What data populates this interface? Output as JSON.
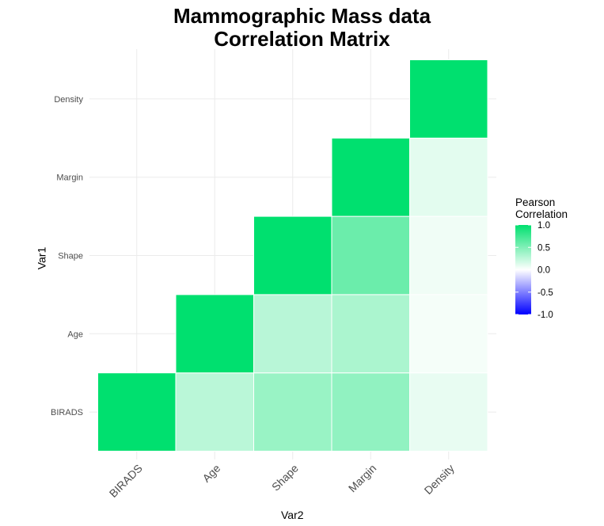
{
  "chart_data": {
    "type": "heatmap",
    "title": [
      "Mammographic Mass data",
      "Correlation Matrix"
    ],
    "xlabel": "Var2",
    "ylabel": "Var1",
    "x_categories": [
      "BIRADS",
      "Age",
      "Shape",
      "Margin",
      "Density"
    ],
    "y_categories": [
      "BIRADS",
      "Age",
      "Shape",
      "Margin",
      "Density"
    ],
    "cells": [
      {
        "x": "BIRADS",
        "y": "BIRADS",
        "value": 1.0
      },
      {
        "x": "Age",
        "y": "BIRADS",
        "value": 0.27
      },
      {
        "x": "Shape",
        "y": "BIRADS",
        "value": 0.4
      },
      {
        "x": "Margin",
        "y": "BIRADS",
        "value": 0.43
      },
      {
        "x": "Density",
        "y": "BIRADS",
        "value": 0.09
      },
      {
        "x": "Age",
        "y": "Age",
        "value": 1.0
      },
      {
        "x": "Shape",
        "y": "Age",
        "value": 0.28
      },
      {
        "x": "Margin",
        "y": "Age",
        "value": 0.33
      },
      {
        "x": "Density",
        "y": "Age",
        "value": 0.04
      },
      {
        "x": "Shape",
        "y": "Shape",
        "value": 1.0
      },
      {
        "x": "Margin",
        "y": "Shape",
        "value": 0.58
      },
      {
        "x": "Density",
        "y": "Shape",
        "value": 0.06
      },
      {
        "x": "Margin",
        "y": "Margin",
        "value": 1.0
      },
      {
        "x": "Density",
        "y": "Margin",
        "value": 0.11
      },
      {
        "x": "Density",
        "y": "Density",
        "value": 1.0
      }
    ],
    "legend": {
      "title": [
        "Pearson",
        "Correlation"
      ],
      "ticks": [
        "1.0",
        "0.5",
        "0.0",
        "-0.5",
        "-1.0"
      ],
      "tick_values": [
        1.0,
        0.5,
        0.0,
        -0.5,
        -1.0
      ],
      "range": [
        -1,
        1
      ],
      "colors": {
        "low": "#0000ff",
        "mid": "#ffffff",
        "high": "#00e06f"
      },
      "placement": "right"
    },
    "grid": true
  }
}
